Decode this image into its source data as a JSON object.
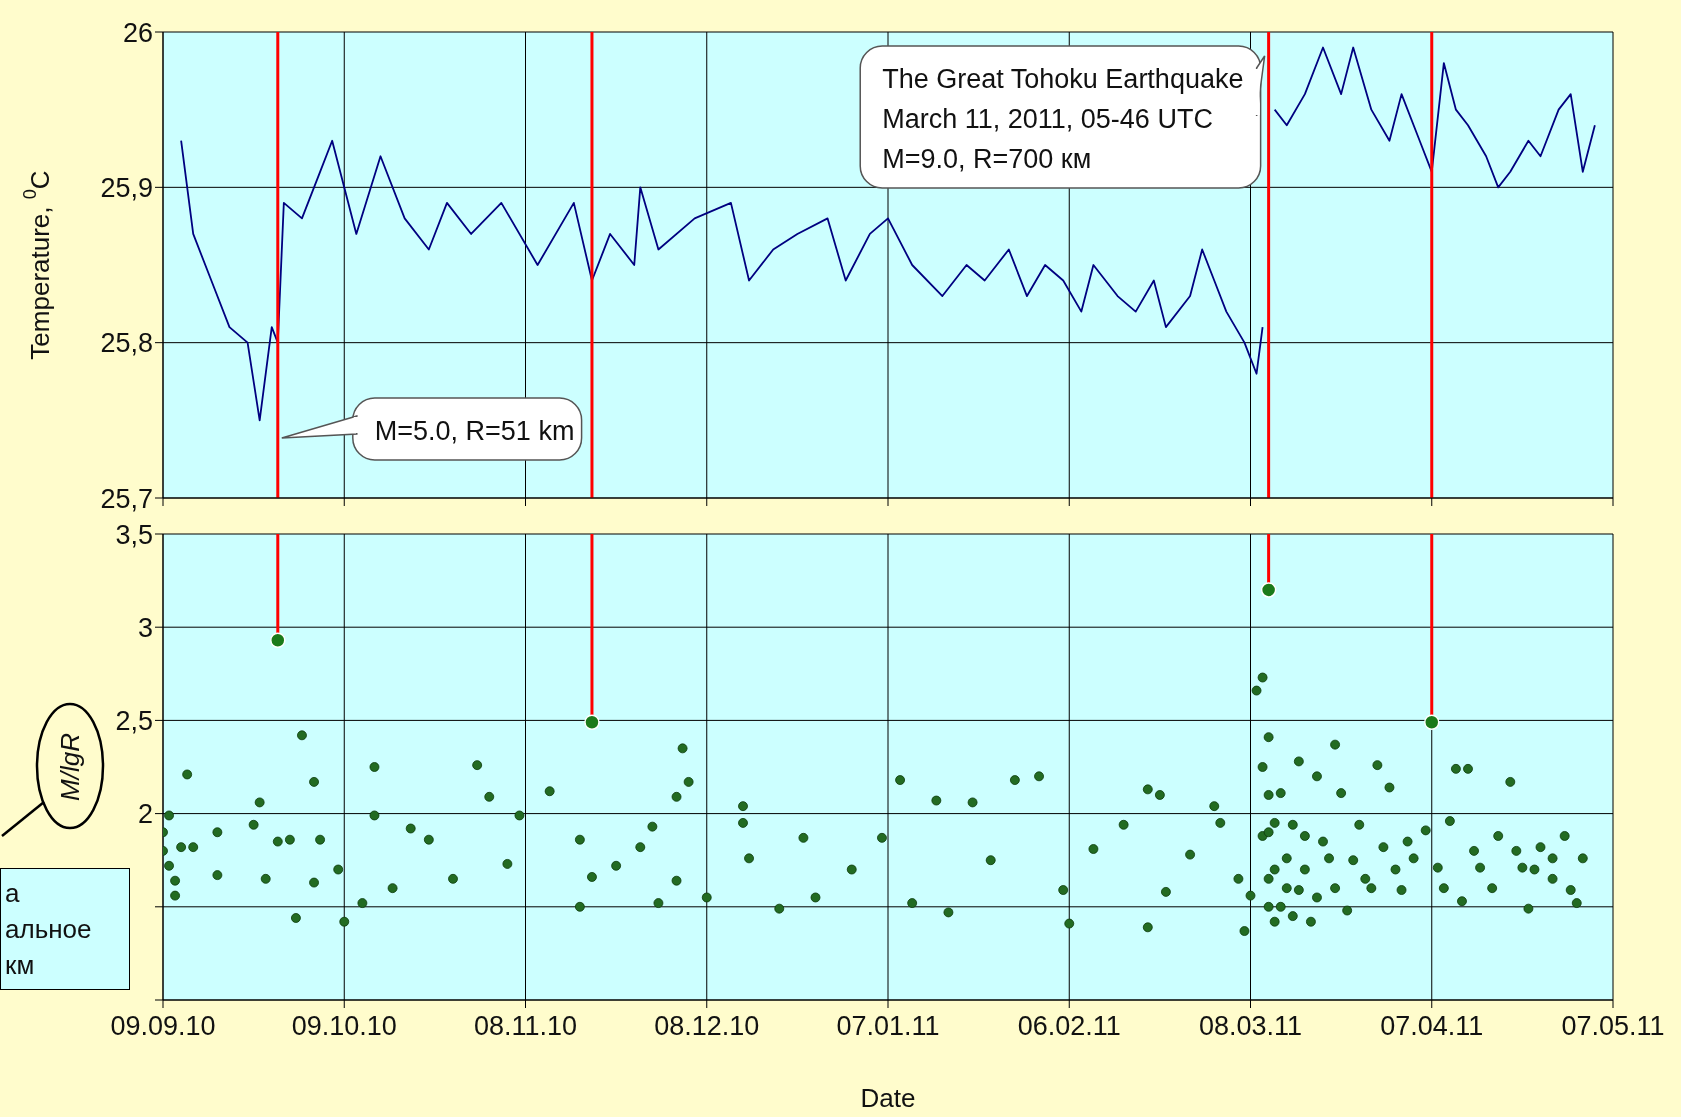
{
  "chart_data": [
    {
      "type": "line",
      "ylabel": "Temperature, $^{0}$C",
      "color": "#000080",
      "x": [
        "2010-09-12",
        "2010-09-14",
        "2010-09-17",
        "2010-09-20",
        "2010-09-23",
        "2010-09-25",
        "2010-09-27",
        "2010-09-28",
        "2010-09-29",
        "2010-10-02",
        "2010-10-05",
        "2010-10-07",
        "2010-10-11",
        "2010-10-15",
        "2010-10-19",
        "2010-10-23",
        "2010-10-26",
        "2010-10-30",
        "2010-11-04",
        "2010-11-10",
        "2010-11-16",
        "2010-11-19",
        "2010-11-22",
        "2010-11-26",
        "2010-11-27",
        "2010-11-30",
        "2010-12-06",
        "2010-12-12",
        "2010-12-15",
        "2010-12-19",
        "2010-12-23",
        "2010-12-28",
        "2010-12-31",
        "2011-01-04",
        "2011-01-07",
        "2011-01-11",
        "2011-01-16",
        "2011-01-20",
        "2011-01-23",
        "2011-01-27",
        "2011-01-30",
        "2011-02-02",
        "2011-02-05",
        "2011-02-08",
        "2011-02-10",
        "2011-02-14",
        "2011-02-17",
        "2011-02-20",
        "2011-02-22",
        "2011-02-26",
        "2011-02-28",
        "2011-03-02",
        "2011-03-04",
        "2011-03-07",
        "2011-03-09",
        "2011-03-10",
        "2011-03-11",
        "2011-03-12",
        "2011-03-14",
        "2011-03-17",
        "2011-03-20",
        "2011-03-23",
        "2011-03-25",
        "2011-03-28",
        "2011-03-31",
        "2011-04-02",
        "2011-04-05",
        "2011-04-07",
        "2011-04-09",
        "2011-04-11",
        "2011-04-13",
        "2011-04-16",
        "2011-04-18",
        "2011-04-20",
        "2011-04-23",
        "2011-04-25",
        "2011-04-28",
        "2011-04-30",
        "2011-05-02",
        "2011-05-04"
      ],
      "values": [
        25.93,
        25.87,
        25.84,
        25.81,
        25.8,
        25.75,
        25.81,
        25.8,
        25.89,
        25.88,
        25.91,
        25.93,
        25.87,
        25.92,
        25.88,
        25.86,
        25.89,
        25.87,
        25.89,
        25.85,
        25.89,
        25.84,
        25.87,
        25.85,
        25.9,
        25.86,
        25.88,
        25.89,
        25.84,
        25.86,
        25.87,
        25.88,
        25.84,
        25.87,
        25.88,
        25.85,
        25.83,
        25.85,
        25.84,
        25.86,
        25.83,
        25.85,
        25.84,
        25.82,
        25.85,
        25.83,
        25.82,
        25.84,
        25.81,
        25.83,
        25.86,
        25.84,
        25.82,
        25.8,
        25.78,
        25.81,
        null,
        25.95,
        25.94,
        25.96,
        25.99,
        25.96,
        25.99,
        25.95,
        25.93,
        25.96,
        25.93,
        25.91,
        25.98,
        25.95,
        25.94,
        25.92,
        25.9,
        25.91,
        25.93,
        25.92,
        25.95,
        25.96,
        25.91,
        25.94
      ],
      "xlim": [
        "2010-09-09",
        "2011-05-07"
      ],
      "xticks": [
        {
          "value": "2010-09-09",
          "label": null
        },
        {
          "value": "2010-10-09",
          "label": null
        },
        {
          "value": "2010-11-08",
          "label": null
        },
        {
          "value": "2010-12-08",
          "label": null
        },
        {
          "value": "2011-01-07",
          "label": null
        },
        {
          "value": "2011-02-06",
          "label": null
        },
        {
          "value": "2011-03-08",
          "label": null
        },
        {
          "value": "2011-04-07",
          "label": null
        },
        {
          "value": "2011-05-07",
          "label": null
        }
      ],
      "ylim": [
        25.7,
        26
      ],
      "yticks": [
        {
          "value": 25.7,
          "label": "25,7"
        },
        {
          "value": 25.8,
          "label": "25,8"
        },
        {
          "value": 25.9,
          "label": "25,9"
        },
        26
      ],
      "grid": true,
      "tick_labels": "y",
      "ref_lines": [
        {
          "axis": "x",
          "value": "2010-09-28",
          "color": "#ff0000",
          "label": "M=5.0, R=51 km"
        },
        {
          "axis": "x",
          "value": "2010-11-19",
          "color": "#ff0000"
        },
        {
          "axis": "x",
          "value": "2011-03-11",
          "color": "#ff0000",
          "label": "The Great Tohoku Earthquake\nMarch 11, 2011, 05-46 UTC\nM=9.0, R=700 км"
        },
        {
          "axis": "x",
          "value": "2011-04-07",
          "color": "#ff0000"
        }
      ]
    },
    {
      "type": "scatter",
      "xlabel": "Date",
      "ylabel": "M/lgR",
      "marker": "circle",
      "series": [
        {
          "color": "#226b22",
          "x": [
            "2010-09-09",
            "2010-09-09",
            "2010-09-10",
            "2010-09-10",
            "2010-09-11",
            "2010-09-11",
            "2010-09-13",
            "2010-09-12",
            "2010-09-14",
            "2010-09-18",
            "2010-09-18",
            "2010-09-24",
            "2010-09-25",
            "2010-09-26",
            "2010-09-28",
            "2010-09-30",
            "2010-10-02",
            "2010-10-04",
            "2010-10-01",
            "2010-10-05",
            "2010-10-04",
            "2010-10-08",
            "2010-10-09",
            "2010-10-12",
            "2010-10-14",
            "2010-10-14",
            "2010-10-17",
            "2010-10-20",
            "2010-10-23",
            "2010-10-27",
            "2010-10-31",
            "2010-11-02",
            "2010-11-05",
            "2010-11-07",
            "2010-11-12",
            "2010-11-17",
            "2010-11-17",
            "2010-11-19",
            "2010-11-23",
            "2010-11-27",
            "2010-11-29",
            "2010-11-30",
            "2010-12-03",
            "2010-12-04",
            "2010-12-05",
            "2010-12-03",
            "2010-12-08",
            "2010-12-14",
            "2010-12-14",
            "2010-12-15",
            "2010-12-20",
            "2010-12-24",
            "2010-12-26",
            "2011-01-01",
            "2011-01-06",
            "2011-01-09",
            "2011-01-11",
            "2011-01-15",
            "2011-01-17",
            "2011-01-21",
            "2011-01-24",
            "2011-01-28",
            "2011-02-01",
            "2011-02-05",
            "2011-02-06",
            "2011-02-10",
            "2011-02-15",
            "2011-02-19",
            "2011-02-21",
            "2011-02-19",
            "2011-02-22",
            "2011-02-26",
            "2011-03-02",
            "2011-03-03",
            "2011-03-06",
            "2011-03-07",
            "2011-03-08",
            "2011-03-09",
            "2011-03-10",
            "2011-03-11",
            "2011-03-10",
            "2011-03-10",
            "2011-03-11",
            "2011-03-12",
            "2011-03-13",
            "2011-03-14",
            "2011-03-15",
            "2011-03-16",
            "2011-03-16",
            "2011-03-17",
            "2011-03-18",
            "2011-03-19",
            "2011-03-21",
            "2011-03-22",
            "2011-03-23",
            "2011-03-24",
            "2011-03-26",
            "2011-03-27",
            "2011-03-29",
            "2011-03-30",
            "2011-03-31",
            "2011-04-02",
            "2011-04-04",
            "2011-04-06",
            "2011-04-08",
            "2011-04-10",
            "2011-04-11",
            "2011-04-13",
            "2011-04-12",
            "2011-04-15",
            "2011-04-18",
            "2011-04-20",
            "2011-04-22",
            "2011-04-23",
            "2011-04-25",
            "2011-04-27",
            "2011-04-29",
            "2011-04-30",
            "2011-05-02",
            "2011-05-01",
            "2011-03-11",
            "2011-03-11",
            "2011-03-11",
            "2011-03-12",
            "2011-03-12",
            "2011-03-13",
            "2011-03-14",
            "2011-03-15",
            "2011-03-17",
            "2011-03-19",
            "2011-03-20",
            "2011-03-22",
            "2011-03-25",
            "2011-03-28",
            "2011-04-01",
            "2011-04-03",
            "2011-04-09",
            "2011-04-14",
            "2011-04-17",
            "2011-04-21",
            "2011-04-24",
            "2011-04-27"
          ],
          "values": [
            1.8,
            1.9,
            1.99,
            1.72,
            1.56,
            1.64,
            2.21,
            1.82,
            1.82,
            1.9,
            1.67,
            1.94,
            2.06,
            1.65,
            1.85,
            1.86,
            2.42,
            2.17,
            1.44,
            1.86,
            1.63,
            1.7,
            1.42,
            1.52,
            2.25,
            1.99,
            1.6,
            1.92,
            1.86,
            1.65,
            2.26,
            2.09,
            1.73,
            1.99,
            2.12,
            1.86,
            1.5,
            1.66,
            1.72,
            1.82,
            1.93,
            1.52,
            2.09,
            2.35,
            2.17,
            1.64,
            1.55,
            2.04,
            1.95,
            1.76,
            1.49,
            1.87,
            1.55,
            1.7,
            1.87,
            2.18,
            1.52,
            2.07,
            1.47,
            2.06,
            1.75,
            2.18,
            2.2,
            1.59,
            1.41,
            1.81,
            1.94,
            2.13,
            2.1,
            1.39,
            1.58,
            1.78,
            2.04,
            1.95,
            1.65,
            1.37,
            1.56,
            2.66,
            2.73,
            2.41,
            2.25,
            1.88,
            1.65,
            1.42,
            2.11,
            1.76,
            1.94,
            2.28,
            1.59,
            1.88,
            1.42,
            2.2,
            1.76,
            2.37,
            2.11,
            1.48,
            1.94,
            1.65,
            2.26,
            1.82,
            2.14,
            1.59,
            1.76,
            1.91,
            1.71,
            1.96,
            2.24,
            2.24,
            1.53,
            1.71,
            1.88,
            2.17,
            1.71,
            1.49,
            1.82,
            1.76,
            1.88,
            1.59,
            1.76,
            1.52,
            1.5,
            1.9,
            2.1,
            1.7,
            1.95,
            1.5,
            1.6,
            1.45,
            1.7,
            1.55,
            1.85,
            1.6,
            1.75,
            1.6,
            1.7,
            1.85,
            1.6,
            1.8,
            1.6,
            1.8,
            1.7,
            1.65
          ]
        },
        {
          "color": "#1a7a1a",
          "x": [
            "2010-09-28",
            "2010-11-19",
            "2011-03-11",
            "2011-04-07"
          ],
          "values": [
            2.93,
            2.49,
            3.2,
            2.49
          ]
        }
      ],
      "xlim": [
        "2010-09-09",
        "2011-05-07"
      ],
      "xticks": [
        {
          "value": "2010-09-09",
          "label": "09.09.10"
        },
        {
          "value": "2010-10-09",
          "label": "09.10.10"
        },
        {
          "value": "2010-11-08",
          "label": "08.11.10"
        },
        {
          "value": "2010-12-08",
          "label": "08.12.10"
        },
        {
          "value": "2011-01-07",
          "label": "07.01.11"
        },
        {
          "value": "2011-02-06",
          "label": "06.02.11"
        },
        {
          "value": "2011-03-08",
          "label": "08.03.11"
        },
        {
          "value": "2011-04-07",
          "label": "07.04.11"
        },
        {
          "value": "2011-05-07",
          "label": "07.05.11"
        }
      ],
      "ylim": [
        1,
        3.5
      ],
      "yticks": [
        {
          "value": 1,
          "label": null
        },
        {
          "value": 1.5,
          "label": null
        },
        2,
        {
          "value": 2.5,
          "label": "2,5"
        },
        3,
        {
          "value": 3.5,
          "label": "3,5"
        }
      ],
      "grid": true,
      "ref_lines": [
        {
          "axis": "x",
          "value": "2010-09-28",
          "color": "#ff0000"
        },
        {
          "axis": "x",
          "value": "2010-11-19",
          "color": "#ff0000"
        },
        {
          "axis": "x",
          "value": "2011-03-11",
          "color": "#ff0000"
        },
        {
          "axis": "x",
          "value": "2011-04-07",
          "color": "#ff0000"
        }
      ],
      "annotations": [
        "а\nальное\nкм"
      ]
    }
  ]
}
